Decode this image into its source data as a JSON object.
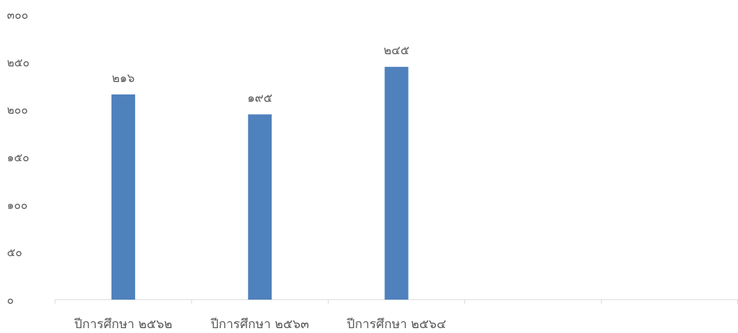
{
  "chart_data": {
    "type": "bar",
    "title": "",
    "xlabel": "",
    "ylabel": "",
    "ylim": [
      0,
      300
    ],
    "grid": false,
    "legend": "none",
    "y_ticks": [
      0,
      50,
      100,
      150,
      200,
      250,
      300
    ],
    "y_tick_labels": [
      "๐",
      "๕๐",
      "๑๐๐",
      "๑๕๐",
      "๒๐๐",
      "๒๕๐",
      "๓๐๐"
    ],
    "slot_count": 5,
    "categories": [
      "ปีการศึกษา ๒๕๖๒",
      "ปีการศึกษา ๒๕๖๓",
      "ปีการศึกษา ๒๕๖๔"
    ],
    "values": [
      216,
      195,
      245
    ],
    "data_labels": [
      "๒๑๖",
      "๑๙๕",
      "๒๔๕"
    ],
    "bar_color": "#4F81BD",
    "axis_color": "#D9D9D9",
    "text_color": "#595959"
  }
}
